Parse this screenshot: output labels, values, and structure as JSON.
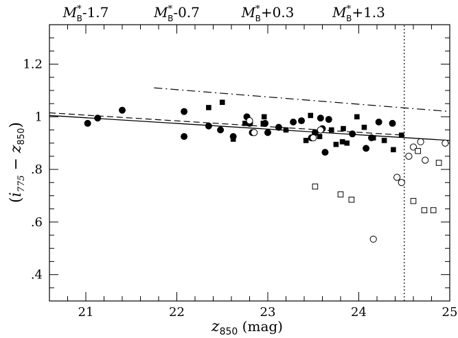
{
  "chart_data": {
    "type": "scatter",
    "title": "",
    "xlabel": {
      "main": "z",
      "sub": "850",
      "suffix": " (mag)"
    },
    "ylabel": {
      "open": "(",
      "i": "i",
      "isub": "775",
      "minus": " − ",
      "z": "z",
      "zsub": "850",
      "close": ")"
    },
    "xlim": [
      20.6,
      25.0
    ],
    "ylim": [
      0.3,
      1.35
    ],
    "grid": false,
    "x_ticks": [
      {
        "value": 21,
        "label": "21"
      },
      {
        "value": 22,
        "label": "22"
      },
      {
        "value": 23,
        "label": "23"
      },
      {
        "value": 24,
        "label": "24"
      },
      {
        "value": 25,
        "label": "25"
      }
    ],
    "y_ticks": [
      {
        "value": 0.4,
        "label": ".4"
      },
      {
        "value": 0.6,
        "label": ".6"
      },
      {
        "value": 0.8,
        "label": ".8"
      },
      {
        "value": 1.0,
        "label": "1"
      },
      {
        "value": 1.2,
        "label": "1.2"
      }
    ],
    "top_labels": [
      {
        "x": 21.0,
        "main": "M",
        "sup": "*",
        "sub": "B",
        "suffix": "-1.7"
      },
      {
        "x": 22.0,
        "main": "M",
        "sup": "*",
        "sub": "B",
        "suffix": "-0.7"
      },
      {
        "x": 23.0,
        "main": "M",
        "sup": "*",
        "sub": "B",
        "suffix": "+0.3"
      },
      {
        "x": 24.0,
        "main": "M",
        "sup": "*",
        "sub": "B",
        "suffix": "+1.3"
      }
    ],
    "lines": [
      {
        "style": "solid",
        "x": [
          20.6,
          25.0
        ],
        "y": [
          1.005,
          0.91
        ]
      },
      {
        "style": "dashed",
        "x": [
          20.6,
          24.5
        ],
        "y": [
          1.015,
          0.93
        ]
      },
      {
        "style": "dashdot",
        "x": [
          21.75,
          25.0
        ],
        "y": [
          1.11,
          1.02
        ]
      },
      {
        "style": "dotted",
        "x": [
          24.5,
          24.5
        ],
        "y": [
          0.3,
          1.35
        ]
      }
    ],
    "series": [
      {
        "marker": "filled-circle",
        "points": [
          [
            21.02,
            0.975
          ],
          [
            21.13,
            0.995
          ],
          [
            21.4,
            1.025
          ],
          [
            22.08,
            1.02
          ],
          [
            22.08,
            0.925
          ],
          [
            22.35,
            0.965
          ],
          [
            22.48,
            0.95
          ],
          [
            22.62,
            0.925
          ],
          [
            22.77,
            1.0
          ],
          [
            22.8,
            0.975
          ],
          [
            22.83,
            0.94
          ],
          [
            22.97,
            0.975
          ],
          [
            23.0,
            0.94
          ],
          [
            23.12,
            0.96
          ],
          [
            23.28,
            0.98
          ],
          [
            23.37,
            0.985
          ],
          [
            23.48,
            0.92
          ],
          [
            23.52,
            0.94
          ],
          [
            23.58,
            0.995
          ],
          [
            23.6,
            0.955
          ],
          [
            23.63,
            0.865
          ],
          [
            23.67,
            0.99
          ],
          [
            23.93,
            0.935
          ],
          [
            24.08,
            0.88
          ],
          [
            24.14,
            0.92
          ],
          [
            24.22,
            0.98
          ],
          [
            24.37,
            0.975
          ]
        ]
      },
      {
        "marker": "filled-square",
        "points": [
          [
            22.35,
            1.035
          ],
          [
            22.5,
            1.055
          ],
          [
            22.62,
            0.915
          ],
          [
            22.75,
            0.975
          ],
          [
            22.95,
            0.975
          ],
          [
            22.96,
            1.0
          ],
          [
            23.2,
            0.95
          ],
          [
            23.42,
            0.91
          ],
          [
            23.47,
            1.005
          ],
          [
            23.57,
            0.925
          ],
          [
            23.7,
            0.95
          ],
          [
            23.75,
            0.895
          ],
          [
            23.82,
            0.905
          ],
          [
            23.83,
            0.955
          ],
          [
            23.87,
            0.9
          ],
          [
            23.98,
            1.0
          ],
          [
            24.06,
            0.96
          ],
          [
            24.16,
            0.92
          ],
          [
            24.28,
            0.91
          ],
          [
            24.38,
            0.875
          ],
          [
            24.47,
            0.93
          ]
        ]
      },
      {
        "marker": "open-circle",
        "points": [
          [
            22.8,
            0.985
          ],
          [
            22.85,
            0.94
          ],
          [
            23.5,
            0.92
          ],
          [
            23.58,
            0.95
          ],
          [
            24.16,
            0.535
          ],
          [
            24.42,
            0.77
          ],
          [
            24.47,
            0.75
          ],
          [
            24.55,
            0.85
          ],
          [
            24.6,
            0.885
          ],
          [
            24.68,
            0.905
          ],
          [
            24.73,
            0.835
          ],
          [
            24.95,
            0.9
          ]
        ]
      },
      {
        "marker": "open-square",
        "points": [
          [
            23.52,
            0.735
          ],
          [
            23.8,
            0.705
          ],
          [
            23.92,
            0.685
          ],
          [
            24.6,
            0.68
          ],
          [
            24.65,
            0.87
          ],
          [
            24.72,
            0.645
          ],
          [
            24.82,
            0.645
          ],
          [
            24.88,
            0.825
          ]
        ]
      }
    ]
  }
}
